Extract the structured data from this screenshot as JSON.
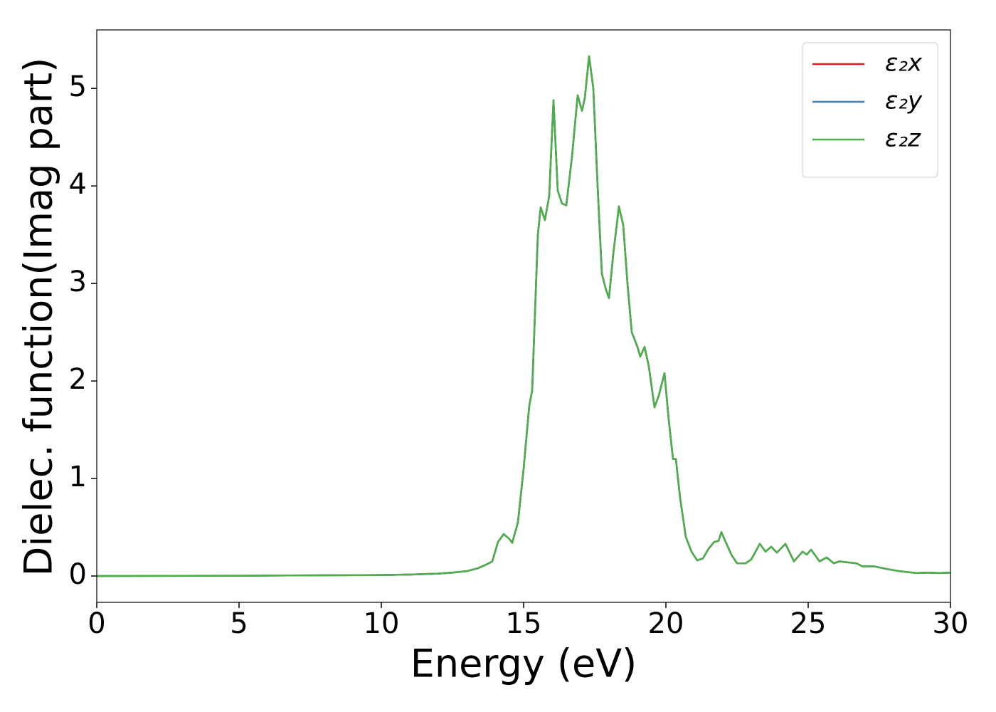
{
  "chart_data": {
    "type": "line",
    "xlabel": "Energy (eV)",
    "ylabel": "Dielec. function(Imag part)",
    "x": [
      0,
      5,
      10,
      11,
      12,
      12.5,
      13,
      13.4,
      13.7,
      13.9,
      14.1,
      14.3,
      14.5,
      14.6,
      14.8,
      15.0,
      15.2,
      15.3,
      15.4,
      15.5,
      15.6,
      15.75,
      15.9,
      16.05,
      16.2,
      16.35,
      16.5,
      16.7,
      16.9,
      17.05,
      17.15,
      17.3,
      17.45,
      17.6,
      17.75,
      17.9,
      18.0,
      18.15,
      18.35,
      18.5,
      18.65,
      18.8,
      19.0,
      19.1,
      19.25,
      19.4,
      19.6,
      19.75,
      19.95,
      20.1,
      20.25,
      20.35,
      20.5,
      20.7,
      20.9,
      21.1,
      21.3,
      21.5,
      21.7,
      21.85,
      21.95,
      22.1,
      22.3,
      22.5,
      22.8,
      23.0,
      23.3,
      23.5,
      23.7,
      23.9,
      24.2,
      24.5,
      24.8,
      24.95,
      25.1,
      25.4,
      25.65,
      25.9,
      26.1,
      26.4,
      26.7,
      26.9,
      27.3,
      27.8,
      28.2,
      28.5,
      28.8,
      29.2,
      29.6,
      30
    ],
    "series": [
      {
        "name": "ε₂x",
        "color": "#e41a1c",
        "values": [
          0,
          0.003,
          0.01,
          0.015,
          0.025,
          0.035,
          0.05,
          0.08,
          0.12,
          0.15,
          0.35,
          0.43,
          0.38,
          0.34,
          0.55,
          1.1,
          1.75,
          1.9,
          2.7,
          3.5,
          3.78,
          3.65,
          3.9,
          4.88,
          3.95,
          3.82,
          3.8,
          4.3,
          4.93,
          4.77,
          4.9,
          5.33,
          5.0,
          4.0,
          3.1,
          2.93,
          2.85,
          3.3,
          3.79,
          3.6,
          3.0,
          2.5,
          2.35,
          2.25,
          2.35,
          2.15,
          1.73,
          1.85,
          2.08,
          1.6,
          1.2,
          1.2,
          0.8,
          0.4,
          0.25,
          0.16,
          0.18,
          0.28,
          0.35,
          0.36,
          0.45,
          0.35,
          0.22,
          0.13,
          0.13,
          0.17,
          0.33,
          0.25,
          0.3,
          0.24,
          0.33,
          0.15,
          0.25,
          0.22,
          0.27,
          0.15,
          0.19,
          0.13,
          0.15,
          0.14,
          0.13,
          0.1,
          0.1,
          0.07,
          0.05,
          0.04,
          0.03,
          0.035,
          0.03,
          0.035
        ]
      },
      {
        "name": "ε₂y",
        "color": "#377eb8",
        "values": [
          0,
          0.003,
          0.01,
          0.015,
          0.025,
          0.035,
          0.05,
          0.08,
          0.12,
          0.15,
          0.35,
          0.43,
          0.38,
          0.34,
          0.55,
          1.1,
          1.75,
          1.9,
          2.7,
          3.5,
          3.78,
          3.65,
          3.9,
          4.88,
          3.95,
          3.82,
          3.8,
          4.3,
          4.93,
          4.77,
          4.9,
          5.33,
          5.0,
          4.0,
          3.1,
          2.93,
          2.85,
          3.3,
          3.79,
          3.6,
          3.0,
          2.5,
          2.35,
          2.25,
          2.35,
          2.15,
          1.73,
          1.85,
          2.08,
          1.6,
          1.2,
          1.2,
          0.8,
          0.4,
          0.25,
          0.16,
          0.18,
          0.28,
          0.35,
          0.36,
          0.45,
          0.35,
          0.22,
          0.13,
          0.13,
          0.17,
          0.33,
          0.25,
          0.3,
          0.24,
          0.33,
          0.15,
          0.25,
          0.22,
          0.27,
          0.15,
          0.19,
          0.13,
          0.15,
          0.14,
          0.13,
          0.1,
          0.1,
          0.07,
          0.05,
          0.04,
          0.03,
          0.035,
          0.03,
          0.035
        ]
      },
      {
        "name": "ε₂z",
        "color": "#4daf4a",
        "values": [
          0,
          0.003,
          0.01,
          0.015,
          0.025,
          0.035,
          0.05,
          0.08,
          0.12,
          0.15,
          0.35,
          0.43,
          0.38,
          0.34,
          0.55,
          1.1,
          1.75,
          1.9,
          2.7,
          3.5,
          3.78,
          3.65,
          3.9,
          4.88,
          3.95,
          3.82,
          3.8,
          4.3,
          4.93,
          4.77,
          4.9,
          5.33,
          5.0,
          4.0,
          3.1,
          2.93,
          2.85,
          3.3,
          3.79,
          3.6,
          3.0,
          2.5,
          2.35,
          2.25,
          2.35,
          2.15,
          1.73,
          1.85,
          2.08,
          1.6,
          1.2,
          1.2,
          0.8,
          0.4,
          0.25,
          0.16,
          0.18,
          0.28,
          0.35,
          0.36,
          0.45,
          0.35,
          0.22,
          0.13,
          0.13,
          0.17,
          0.33,
          0.25,
          0.3,
          0.24,
          0.33,
          0.15,
          0.25,
          0.22,
          0.27,
          0.15,
          0.19,
          0.13,
          0.15,
          0.14,
          0.13,
          0.1,
          0.1,
          0.07,
          0.05,
          0.04,
          0.03,
          0.035,
          0.03,
          0.035
        ]
      }
    ],
    "xlim": [
      0,
      30
    ],
    "xticks": [
      0,
      5,
      10,
      15,
      20,
      25,
      30
    ],
    "ylim": [
      -0.27,
      5.6
    ],
    "yticks": [
      0,
      1,
      2,
      3,
      4,
      5
    ],
    "legend": "upper right"
  }
}
